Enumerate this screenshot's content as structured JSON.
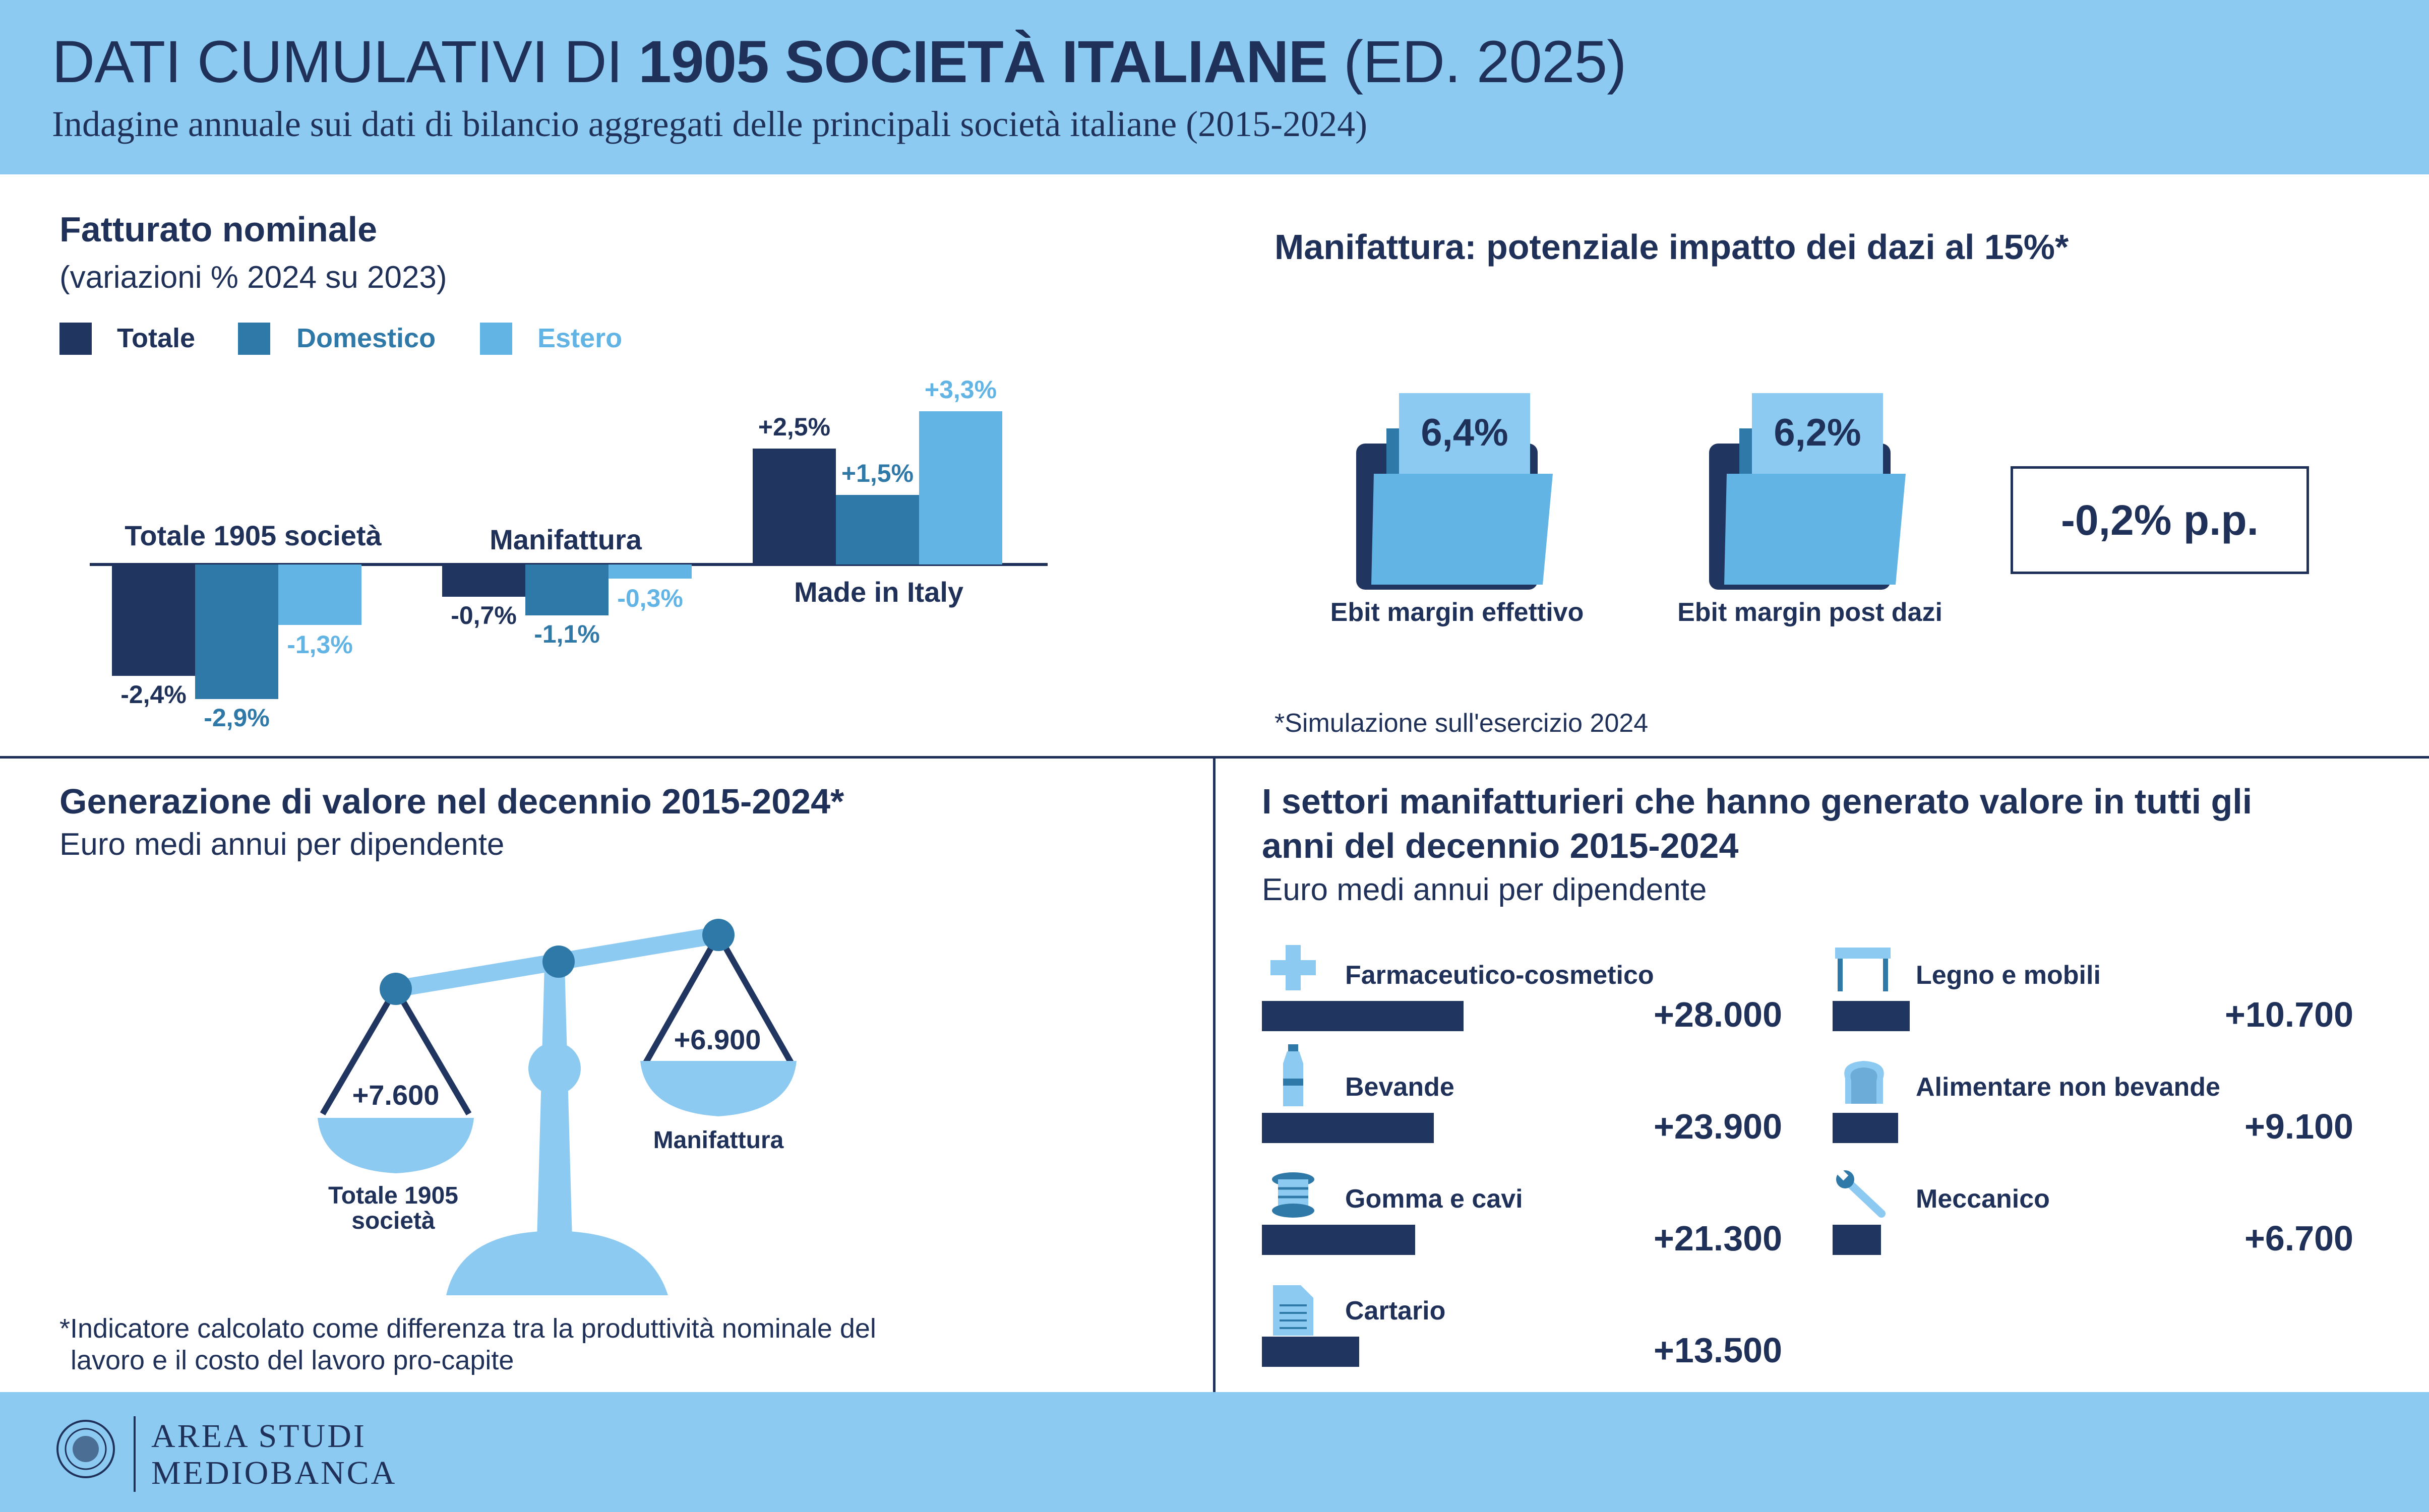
{
  "header": {
    "title_prefix": "DATI CUMULATIVI DI ",
    "title_bold": "1905 SOCIETÀ ITALIANE",
    "title_suffix": " (ED. 2025)",
    "subtitle": "Indagine annuale sui dati di bilancio aggregati delle principali società italiane (2015-2024)"
  },
  "colors": {
    "totale": "#213561",
    "domestico": "#2f79a8",
    "estero": "#62b4e5",
    "header_bg": "#8ccaf1"
  },
  "fatturato": {
    "title": "Fatturato nominale",
    "subtitle": "(variazioni % 2024 su 2023)",
    "legend": [
      "Totale",
      "Domestico",
      "Estero"
    ]
  },
  "dazi": {
    "title": "Manifattura: potenziale impatto dei dazi al 15%*",
    "effettivo_value": "6,4%",
    "effettivo_label": "Ebit margin effettivo",
    "post_value": "6,2%",
    "post_label": "Ebit margin post dazi",
    "delta": "-0,2% p.p.",
    "note": "*Simulazione sull'esercizio 2024"
  },
  "valore": {
    "title": "Generazione di valore nel decennio 2015-2024*",
    "subtitle": "Euro medi annui per dipendente",
    "left_value": "+7.600",
    "left_label_1": "Totale 1905",
    "left_label_2": "società",
    "right_value": "+6.900",
    "right_label": "Manifattura",
    "note_1": "*Indicatore calcolato come differenza tra la produttività nominale del",
    "note_2": "lavoro e il costo del lavoro pro-capite"
  },
  "settori": {
    "title_1": "I settori manifatturieri che hanno generato valore in tutti gli",
    "title_2": "anni del decennio 2015-2024",
    "subtitle": "Euro medi annui per dipendente",
    "items": [
      {
        "label": "Farmaceutico-cosmetico",
        "value_text": "+28.000",
        "icon": "medical-cross-icon"
      },
      {
        "label": "Bevande",
        "value_text": "+23.900",
        "icon": "bottle-icon"
      },
      {
        "label": "Gomma e cavi",
        "value_text": "+21.300",
        "icon": "cable-reel-icon"
      },
      {
        "label": "Cartario",
        "value_text": "+13.500",
        "icon": "paper-document-icon"
      },
      {
        "label": "Legno e mobili",
        "value_text": "+10.700",
        "icon": "table-icon"
      },
      {
        "label": "Alimentare non bevande",
        "value_text": "+9.100",
        "icon": "bread-icon"
      },
      {
        "label": "Meccanico",
        "value_text": "+6.700",
        "icon": "wrench-icon"
      }
    ]
  },
  "footer": {
    "line1": "AREA STUDI",
    "line2": "MEDIOBANCA"
  },
  "chart_data": [
    {
      "type": "bar",
      "title": "Fatturato nominale",
      "subtitle": "(variazioni % 2024 su 2023)",
      "categories": [
        "Totale 1905 società",
        "Manifattura",
        "Made in Italy"
      ],
      "series": [
        {
          "name": "Totale",
          "values": [
            -2.4,
            -0.7,
            2.5
          ],
          "labels": [
            "-2,4%",
            "-0,7%",
            "+2,5%"
          ]
        },
        {
          "name": "Domestico",
          "values": [
            -2.9,
            -1.1,
            1.5
          ],
          "labels": [
            "-2,9%",
            "-1,1%",
            "+1,5%"
          ]
        },
        {
          "name": "Estero",
          "values": [
            -1.3,
            -0.3,
            3.3
          ],
          "labels": [
            "-1,3%",
            "-0,3%",
            "+3,3%"
          ]
        }
      ],
      "legend": "top-left",
      "grid": false
    },
    {
      "type": "bar",
      "title": "I settori manifatturieri che hanno generato valore in tutti gli anni del decennio 2015-2024",
      "subtitle": "Euro medi annui per dipendente",
      "categories": [
        "Farmaceutico-cosmetico",
        "Bevande",
        "Gomma e cavi",
        "Cartario",
        "Legno e mobili",
        "Alimentare non bevande",
        "Meccanico"
      ],
      "values": [
        28000,
        23900,
        21300,
        13500,
        10700,
        9100,
        6700
      ],
      "orientation": "horizontal"
    },
    {
      "type": "bar",
      "title": "Generazione di valore nel decennio 2015-2024*",
      "categories": [
        "Totale 1905 società",
        "Manifattura"
      ],
      "values": [
        7600,
        6900
      ]
    }
  ]
}
